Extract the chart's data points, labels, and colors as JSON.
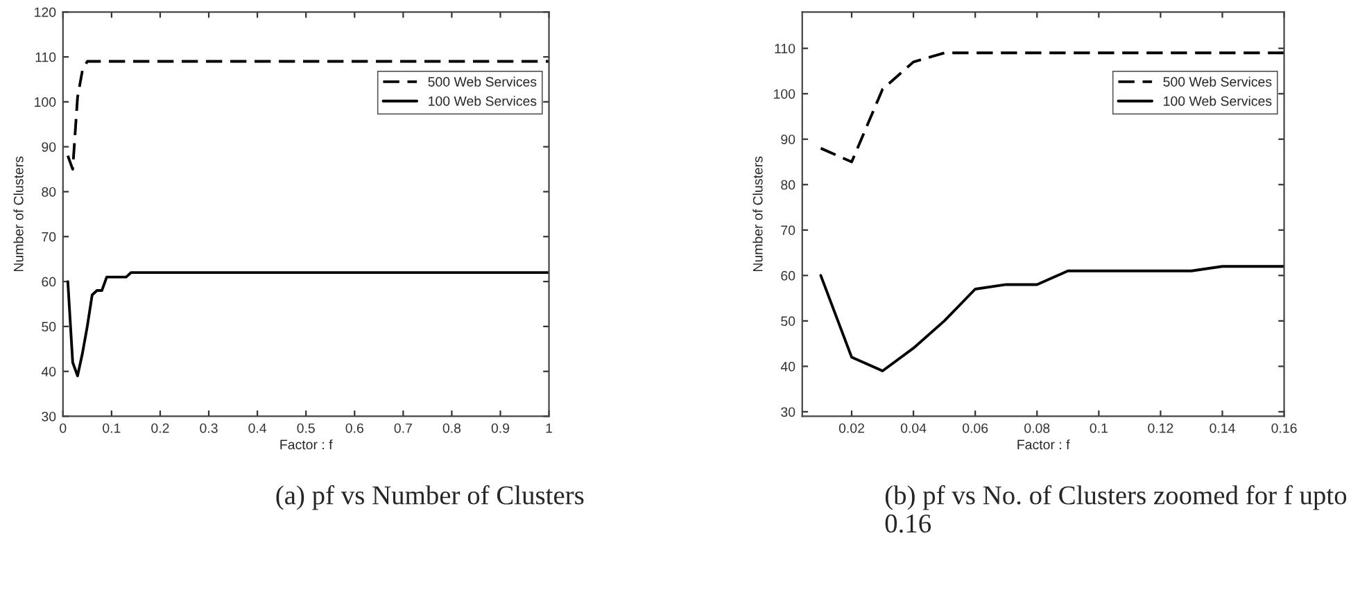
{
  "chart_data": [
    {
      "type": "line",
      "xlabel": "Factor : f",
      "ylabel": "Number of Clusters",
      "xlim": [
        0,
        1
      ],
      "xticks": [
        0,
        0.1,
        0.2,
        0.3,
        0.4,
        0.5,
        0.6,
        0.7,
        0.8,
        0.9,
        1
      ],
      "ylim": [
        30,
        120
      ],
      "yticks": [
        30,
        40,
        50,
        60,
        70,
        80,
        90,
        100,
        110,
        120
      ],
      "grid": false,
      "legend": "top right",
      "series": [
        {
          "name": "500 Web Services",
          "color": "#000000",
          "line_style": "dashed",
          "x": [
            0.01,
            0.02,
            0.03,
            0.04,
            0.05,
            1
          ],
          "values": [
            88,
            85,
            101,
            107,
            109,
            109
          ]
        },
        {
          "name": "100 Web Services",
          "color": "#000000",
          "line_style": "solid",
          "x": [
            0.01,
            0.02,
            0.03,
            0.04,
            0.05,
            0.06,
            0.07,
            0.08,
            0.09,
            0.1,
            0.11,
            0.12,
            0.13,
            0.14,
            0.15,
            0.16,
            1
          ],
          "values": [
            60,
            42,
            39,
            44,
            50,
            57,
            58,
            58,
            61,
            61,
            61,
            61,
            61,
            62,
            62,
            62,
            62
          ]
        }
      ],
      "annotations": [
        "(a) pf vs Number of Clusters"
      ]
    },
    {
      "type": "line",
      "xlabel": "Factor : f",
      "ylabel": "Number of Clusters",
      "xlim": [
        0.004,
        0.16
      ],
      "xticks": [
        0.02,
        0.04,
        0.06,
        0.08,
        0.1,
        0.12,
        0.14,
        0.16
      ],
      "ylim": [
        29,
        118
      ],
      "yticks": [
        30,
        40,
        50,
        60,
        70,
        80,
        90,
        100,
        110
      ],
      "grid": false,
      "legend": "top right",
      "series": [
        {
          "name": "500 Web Services",
          "color": "#000000",
          "line_style": "dashed",
          "x": [
            0.01,
            0.02,
            0.03,
            0.04,
            0.05,
            0.06,
            0.07,
            0.08,
            0.09,
            0.1,
            0.11,
            0.12,
            0.13,
            0.14,
            0.15,
            0.16
          ],
          "values": [
            88,
            85,
            101,
            107,
            109,
            109,
            109,
            109,
            109,
            109,
            109,
            109,
            109,
            109,
            109,
            109
          ]
        },
        {
          "name": "100 Web Services",
          "color": "#000000",
          "line_style": "solid",
          "x": [
            0.01,
            0.02,
            0.03,
            0.04,
            0.05,
            0.06,
            0.07,
            0.08,
            0.09,
            0.1,
            0.11,
            0.12,
            0.13,
            0.14,
            0.15,
            0.16
          ],
          "values": [
            60,
            42,
            39,
            44,
            50,
            57,
            58,
            58,
            61,
            61,
            61,
            61,
            61,
            62,
            62,
            62
          ]
        }
      ],
      "annotations": [
        "(b) pf vs No. of Clusters zoomed for f upto 0.16"
      ]
    }
  ]
}
